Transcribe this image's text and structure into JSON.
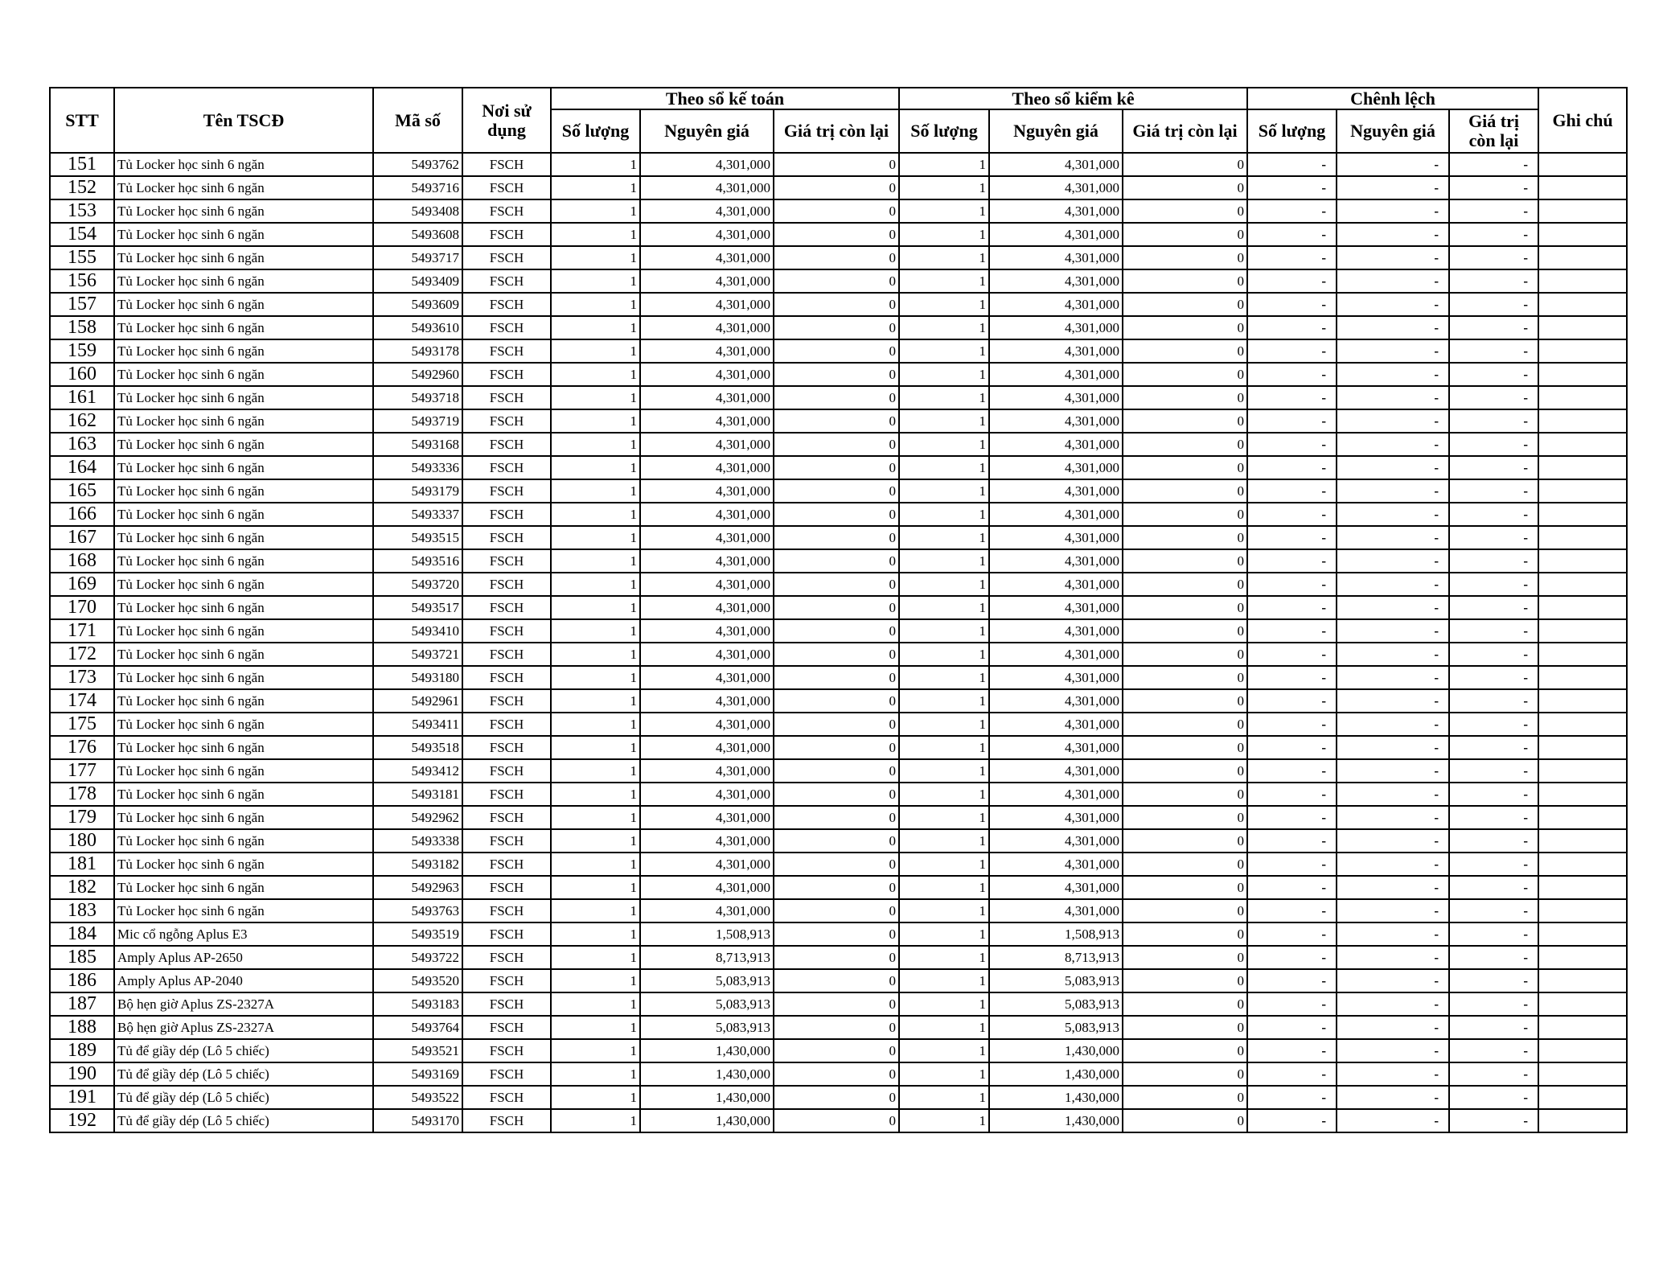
{
  "header": {
    "stt": "STT",
    "name": "Tên TSCĐ",
    "code": "Mã số",
    "place": "Nơi sử dụng",
    "group_accounting": "Theo sổ kế toán",
    "group_inventory": "Theo sổ kiểm kê",
    "group_difference": "Chênh lệch",
    "note": "Ghi chú",
    "qty": "Số lượng",
    "cost": "Nguyên giá",
    "remaining": "Giá trị còn lại",
    "remaining_inv": "Giá trị  còn lại",
    "remaining_diff": "Giá trị còn lại"
  },
  "rows": [
    {
      "stt": "151",
      "name": "Tủ Locker học sinh 6 ngăn",
      "code": "5493762",
      "place": "FSCH",
      "qty": "1",
      "cost": "4,301,000",
      "rem": "0",
      "qty2": "1",
      "cost2": "4,301,000",
      "rem2": "0",
      "d1": "-",
      "d2": "-",
      "d3": "-",
      "note": ""
    },
    {
      "stt": "152",
      "name": "Tủ Locker học sinh 6 ngăn",
      "code": "5493716",
      "place": "FSCH",
      "qty": "1",
      "cost": "4,301,000",
      "rem": "0",
      "qty2": "1",
      "cost2": "4,301,000",
      "rem2": "0",
      "d1": "-",
      "d2": "-",
      "d3": "-",
      "note": ""
    },
    {
      "stt": "153",
      "name": "Tủ Locker học sinh 6 ngăn",
      "code": "5493408",
      "place": "FSCH",
      "qty": "1",
      "cost": "4,301,000",
      "rem": "0",
      "qty2": "1",
      "cost2": "4,301,000",
      "rem2": "0",
      "d1": "-",
      "d2": "-",
      "d3": "-",
      "note": ""
    },
    {
      "stt": "154",
      "name": "Tủ Locker học sinh 6 ngăn",
      "code": "5493608",
      "place": "FSCH",
      "qty": "1",
      "cost": "4,301,000",
      "rem": "0",
      "qty2": "1",
      "cost2": "4,301,000",
      "rem2": "0",
      "d1": "-",
      "d2": "-",
      "d3": "-",
      "note": ""
    },
    {
      "stt": "155",
      "name": "Tủ Locker học sinh 6 ngăn",
      "code": "5493717",
      "place": "FSCH",
      "qty": "1",
      "cost": "4,301,000",
      "rem": "0",
      "qty2": "1",
      "cost2": "4,301,000",
      "rem2": "0",
      "d1": "-",
      "d2": "-",
      "d3": "-",
      "note": ""
    },
    {
      "stt": "156",
      "name": "Tủ Locker học sinh 6 ngăn",
      "code": "5493409",
      "place": "FSCH",
      "qty": "1",
      "cost": "4,301,000",
      "rem": "0",
      "qty2": "1",
      "cost2": "4,301,000",
      "rem2": "0",
      "d1": "-",
      "d2": "-",
      "d3": "-",
      "note": ""
    },
    {
      "stt": "157",
      "name": "Tủ Locker học sinh 6 ngăn",
      "code": "5493609",
      "place": "FSCH",
      "qty": "1",
      "cost": "4,301,000",
      "rem": "0",
      "qty2": "1",
      "cost2": "4,301,000",
      "rem2": "0",
      "d1": "-",
      "d2": "-",
      "d3": "-",
      "note": ""
    },
    {
      "stt": "158",
      "name": "Tủ Locker học sinh 6 ngăn",
      "code": "5493610",
      "place": "FSCH",
      "qty": "1",
      "cost": "4,301,000",
      "rem": "0",
      "qty2": "1",
      "cost2": "4,301,000",
      "rem2": "0",
      "d1": "-",
      "d2": "-",
      "d3": "-",
      "note": ""
    },
    {
      "stt": "159",
      "name": "Tủ Locker học sinh 6 ngăn",
      "code": "5493178",
      "place": "FSCH",
      "qty": "1",
      "cost": "4,301,000",
      "rem": "0",
      "qty2": "1",
      "cost2": "4,301,000",
      "rem2": "0",
      "d1": "-",
      "d2": "-",
      "d3": "-",
      "note": ""
    },
    {
      "stt": "160",
      "name": "Tủ Locker học sinh 6 ngăn",
      "code": "5492960",
      "place": "FSCH",
      "qty": "1",
      "cost": "4,301,000",
      "rem": "0",
      "qty2": "1",
      "cost2": "4,301,000",
      "rem2": "0",
      "d1": "-",
      "d2": "-",
      "d3": "-",
      "note": ""
    },
    {
      "stt": "161",
      "name": "Tủ Locker học sinh 6 ngăn",
      "code": "5493718",
      "place": "FSCH",
      "qty": "1",
      "cost": "4,301,000",
      "rem": "0",
      "qty2": "1",
      "cost2": "4,301,000",
      "rem2": "0",
      "d1": "-",
      "d2": "-",
      "d3": "-",
      "note": ""
    },
    {
      "stt": "162",
      "name": "Tủ Locker học sinh 6 ngăn",
      "code": "5493719",
      "place": "FSCH",
      "qty": "1",
      "cost": "4,301,000",
      "rem": "0",
      "qty2": "1",
      "cost2": "4,301,000",
      "rem2": "0",
      "d1": "-",
      "d2": "-",
      "d3": "-",
      "note": ""
    },
    {
      "stt": "163",
      "name": "Tủ Locker học sinh 6 ngăn",
      "code": "5493168",
      "place": "FSCH",
      "qty": "1",
      "cost": "4,301,000",
      "rem": "0",
      "qty2": "1",
      "cost2": "4,301,000",
      "rem2": "0",
      "d1": "-",
      "d2": "-",
      "d3": "-",
      "note": ""
    },
    {
      "stt": "164",
      "name": "Tủ Locker học sinh 6 ngăn",
      "code": "5493336",
      "place": "FSCH",
      "qty": "1",
      "cost": "4,301,000",
      "rem": "0",
      "qty2": "1",
      "cost2": "4,301,000",
      "rem2": "0",
      "d1": "-",
      "d2": "-",
      "d3": "-",
      "note": ""
    },
    {
      "stt": "165",
      "name": "Tủ Locker học sinh 6 ngăn",
      "code": "5493179",
      "place": "FSCH",
      "qty": "1",
      "cost": "4,301,000",
      "rem": "0",
      "qty2": "1",
      "cost2": "4,301,000",
      "rem2": "0",
      "d1": "-",
      "d2": "-",
      "d3": "-",
      "note": ""
    },
    {
      "stt": "166",
      "name": "Tủ Locker học sinh 6 ngăn",
      "code": "5493337",
      "place": "FSCH",
      "qty": "1",
      "cost": "4,301,000",
      "rem": "0",
      "qty2": "1",
      "cost2": "4,301,000",
      "rem2": "0",
      "d1": "-",
      "d2": "-",
      "d3": "-",
      "note": ""
    },
    {
      "stt": "167",
      "name": "Tủ Locker học sinh 6 ngăn",
      "code": "5493515",
      "place": "FSCH",
      "qty": "1",
      "cost": "4,301,000",
      "rem": "0",
      "qty2": "1",
      "cost2": "4,301,000",
      "rem2": "0",
      "d1": "-",
      "d2": "-",
      "d3": "-",
      "note": ""
    },
    {
      "stt": "168",
      "name": "Tủ Locker học sinh 6 ngăn",
      "code": "5493516",
      "place": "FSCH",
      "qty": "1",
      "cost": "4,301,000",
      "rem": "0",
      "qty2": "1",
      "cost2": "4,301,000",
      "rem2": "0",
      "d1": "-",
      "d2": "-",
      "d3": "-",
      "note": ""
    },
    {
      "stt": "169",
      "name": "Tủ Locker học sinh 6 ngăn",
      "code": "5493720",
      "place": "FSCH",
      "qty": "1",
      "cost": "4,301,000",
      "rem": "0",
      "qty2": "1",
      "cost2": "4,301,000",
      "rem2": "0",
      "d1": "-",
      "d2": "-",
      "d3": "-",
      "note": ""
    },
    {
      "stt": "170",
      "name": "Tủ Locker học sinh 6 ngăn",
      "code": "5493517",
      "place": "FSCH",
      "qty": "1",
      "cost": "4,301,000",
      "rem": "0",
      "qty2": "1",
      "cost2": "4,301,000",
      "rem2": "0",
      "d1": "-",
      "d2": "-",
      "d3": "-",
      "note": ""
    },
    {
      "stt": "171",
      "name": "Tủ Locker học sinh 6 ngăn",
      "code": "5493410",
      "place": "FSCH",
      "qty": "1",
      "cost": "4,301,000",
      "rem": "0",
      "qty2": "1",
      "cost2": "4,301,000",
      "rem2": "0",
      "d1": "-",
      "d2": "-",
      "d3": "-",
      "note": ""
    },
    {
      "stt": "172",
      "name": "Tủ Locker học sinh 6 ngăn",
      "code": "5493721",
      "place": "FSCH",
      "qty": "1",
      "cost": "4,301,000",
      "rem": "0",
      "qty2": "1",
      "cost2": "4,301,000",
      "rem2": "0",
      "d1": "-",
      "d2": "-",
      "d3": "-",
      "note": ""
    },
    {
      "stt": "173",
      "name": "Tủ Locker học sinh 6 ngăn",
      "code": "5493180",
      "place": "FSCH",
      "qty": "1",
      "cost": "4,301,000",
      "rem": "0",
      "qty2": "1",
      "cost2": "4,301,000",
      "rem2": "0",
      "d1": "-",
      "d2": "-",
      "d3": "-",
      "note": ""
    },
    {
      "stt": "174",
      "name": "Tủ Locker học sinh 6 ngăn",
      "code": "5492961",
      "place": "FSCH",
      "qty": "1",
      "cost": "4,301,000",
      "rem": "0",
      "qty2": "1",
      "cost2": "4,301,000",
      "rem2": "0",
      "d1": "-",
      "d2": "-",
      "d3": "-",
      "note": ""
    },
    {
      "stt": "175",
      "name": "Tủ Locker học sinh 6 ngăn",
      "code": "5493411",
      "place": "FSCH",
      "qty": "1",
      "cost": "4,301,000",
      "rem": "0",
      "qty2": "1",
      "cost2": "4,301,000",
      "rem2": "0",
      "d1": "-",
      "d2": "-",
      "d3": "-",
      "note": ""
    },
    {
      "stt": "176",
      "name": "Tủ Locker học sinh 6 ngăn",
      "code": "5493518",
      "place": "FSCH",
      "qty": "1",
      "cost": "4,301,000",
      "rem": "0",
      "qty2": "1",
      "cost2": "4,301,000",
      "rem2": "0",
      "d1": "-",
      "d2": "-",
      "d3": "-",
      "note": ""
    },
    {
      "stt": "177",
      "name": "Tủ Locker học sinh 6 ngăn",
      "code": "5493412",
      "place": "FSCH",
      "qty": "1",
      "cost": "4,301,000",
      "rem": "0",
      "qty2": "1",
      "cost2": "4,301,000",
      "rem2": "0",
      "d1": "-",
      "d2": "-",
      "d3": "-",
      "note": ""
    },
    {
      "stt": "178",
      "name": "Tủ Locker học sinh 6 ngăn",
      "code": "5493181",
      "place": "FSCH",
      "qty": "1",
      "cost": "4,301,000",
      "rem": "0",
      "qty2": "1",
      "cost2": "4,301,000",
      "rem2": "0",
      "d1": "-",
      "d2": "-",
      "d3": "-",
      "note": ""
    },
    {
      "stt": "179",
      "name": "Tủ Locker học sinh 6 ngăn",
      "code": "5492962",
      "place": "FSCH",
      "qty": "1",
      "cost": "4,301,000",
      "rem": "0",
      "qty2": "1",
      "cost2": "4,301,000",
      "rem2": "0",
      "d1": "-",
      "d2": "-",
      "d3": "-",
      "note": ""
    },
    {
      "stt": "180",
      "name": "Tủ Locker học sinh 6 ngăn",
      "code": "5493338",
      "place": "FSCH",
      "qty": "1",
      "cost": "4,301,000",
      "rem": "0",
      "qty2": "1",
      "cost2": "4,301,000",
      "rem2": "0",
      "d1": "-",
      "d2": "-",
      "d3": "-",
      "note": ""
    },
    {
      "stt": "181",
      "name": "Tủ Locker học sinh 6 ngăn",
      "code": "5493182",
      "place": "FSCH",
      "qty": "1",
      "cost": "4,301,000",
      "rem": "0",
      "qty2": "1",
      "cost2": "4,301,000",
      "rem2": "0",
      "d1": "-",
      "d2": "-",
      "d3": "-",
      "note": ""
    },
    {
      "stt": "182",
      "name": "Tủ Locker học sinh 6 ngăn",
      "code": "5492963",
      "place": "FSCH",
      "qty": "1",
      "cost": "4,301,000",
      "rem": "0",
      "qty2": "1",
      "cost2": "4,301,000",
      "rem2": "0",
      "d1": "-",
      "d2": "-",
      "d3": "-",
      "note": ""
    },
    {
      "stt": "183",
      "name": "Tủ Locker học sinh 6 ngăn",
      "code": "5493763",
      "place": "FSCH",
      "qty": "1",
      "cost": "4,301,000",
      "rem": "0",
      "qty2": "1",
      "cost2": "4,301,000",
      "rem2": "0",
      "d1": "-",
      "d2": "-",
      "d3": "-",
      "note": ""
    },
    {
      "stt": "184",
      "name": "Mic cổ ngỗng Aplus E3",
      "code": "5493519",
      "place": "FSCH",
      "qty": "1",
      "cost": "1,508,913",
      "rem": "0",
      "qty2": "1",
      "cost2": "1,508,913",
      "rem2": "0",
      "d1": "-",
      "d2": "-",
      "d3": "-",
      "note": ""
    },
    {
      "stt": "185",
      "name": "Amply Aplus AP-2650",
      "code": "5493722",
      "place": "FSCH",
      "qty": "1",
      "cost": "8,713,913",
      "rem": "0",
      "qty2": "1",
      "cost2": "8,713,913",
      "rem2": "0",
      "d1": "-",
      "d2": "-",
      "d3": "-",
      "note": ""
    },
    {
      "stt": "186",
      "name": "Amply Aplus AP-2040",
      "code": "5493520",
      "place": "FSCH",
      "qty": "1",
      "cost": "5,083,913",
      "rem": "0",
      "qty2": "1",
      "cost2": "5,083,913",
      "rem2": "0",
      "d1": "-",
      "d2": "-",
      "d3": "-",
      "note": ""
    },
    {
      "stt": "187",
      "name": "Bộ hẹn giờ Aplus ZS-2327A",
      "code": "5493183",
      "place": "FSCH",
      "qty": "1",
      "cost": "5,083,913",
      "rem": "0",
      "qty2": "1",
      "cost2": "5,083,913",
      "rem2": "0",
      "d1": "-",
      "d2": "-",
      "d3": "-",
      "note": ""
    },
    {
      "stt": "188",
      "name": "Bộ hẹn giờ Aplus ZS-2327A",
      "code": "5493764",
      "place": "FSCH",
      "qty": "1",
      "cost": "5,083,913",
      "rem": "0",
      "qty2": "1",
      "cost2": "5,083,913",
      "rem2": "0",
      "d1": "-",
      "d2": "-",
      "d3": "-",
      "note": ""
    },
    {
      "stt": "189",
      "name": "Tủ để giầy dép (Lô 5 chiếc)",
      "code": "5493521",
      "place": "FSCH",
      "qty": "1",
      "cost": "1,430,000",
      "rem": "0",
      "qty2": "1",
      "cost2": "1,430,000",
      "rem2": "0",
      "d1": "-",
      "d2": "-",
      "d3": "-",
      "note": ""
    },
    {
      "stt": "190",
      "name": "Tủ để giầy dép (Lô 5 chiếc)",
      "code": "5493169",
      "place": "FSCH",
      "qty": "1",
      "cost": "1,430,000",
      "rem": "0",
      "qty2": "1",
      "cost2": "1,430,000",
      "rem2": "0",
      "d1": "-",
      "d2": "-",
      "d3": "-",
      "note": ""
    },
    {
      "stt": "191",
      "name": "Tủ để giầy dép (Lô 5 chiếc)",
      "code": "5493522",
      "place": "FSCH",
      "qty": "1",
      "cost": "1,430,000",
      "rem": "0",
      "qty2": "1",
      "cost2": "1,430,000",
      "rem2": "0",
      "d1": "-",
      "d2": "-",
      "d3": "-",
      "note": ""
    },
    {
      "stt": "192",
      "name": "Tủ để giầy dép (Lô 5 chiếc)",
      "code": "5493170",
      "place": "FSCH",
      "qty": "1",
      "cost": "1,430,000",
      "rem": "0",
      "qty2": "1",
      "cost2": "1,430,000",
      "rem2": "0",
      "d1": "-",
      "d2": "-",
      "d3": "-",
      "note": ""
    }
  ]
}
